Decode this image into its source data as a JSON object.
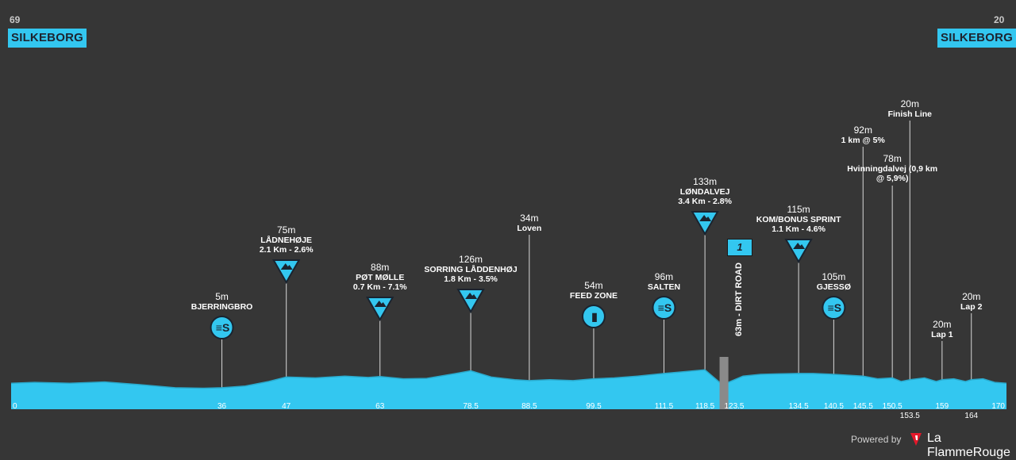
{
  "header": {
    "left_number": "69",
    "left_town": "SILKEBORG",
    "right_number": "20",
    "right_town": "SILKEBORG"
  },
  "profile": {
    "x_km_range": [
      0,
      170
    ],
    "altitude_range_m": [
      0,
      140
    ],
    "fill_color": "#33c7f0",
    "line_color": "#2aa9cc",
    "distance_labels": [
      "0",
      "36",
      "47",
      "63",
      "78.5",
      "88.5",
      "99.5",
      "111.5",
      "118.5",
      "123.5",
      "134.5",
      "140.5",
      "145.5",
      "150.5",
      "153.5",
      "159",
      "164",
      "170"
    ]
  },
  "points": [
    {
      "km": 36,
      "alt": "5m",
      "name": "BJERRINGBRO",
      "type": "sprint"
    },
    {
      "km": 47,
      "alt": "75m",
      "name": "LÅDNEHØJE",
      "detail": "2.1 Km - 2.6%",
      "type": "climb"
    },
    {
      "km": 63,
      "alt": "88m",
      "name": "PØT MØLLE",
      "detail": "0.7 Km - 7.1%",
      "type": "climb"
    },
    {
      "km": 78.5,
      "alt": "126m",
      "name": "SORRING LÅDDENHØJ",
      "detail": "1.8 Km - 3.5%",
      "type": "climb"
    },
    {
      "km": 88.5,
      "alt": "34m",
      "name": "Loven",
      "type": "line"
    },
    {
      "km": 99.5,
      "alt": "54m",
      "name": "FEED ZONE",
      "type": "feed"
    },
    {
      "km": 111.5,
      "alt": "96m",
      "name": "SALTEN",
      "type": "sprint"
    },
    {
      "km": 118.5,
      "alt": "133m",
      "name": "LØNDALVEJ",
      "detail": "3.4 Km - 2.8%",
      "type": "climb"
    },
    {
      "km": 134.5,
      "alt": "115m",
      "name": "KOM/BONUS SPRINT",
      "detail": "1.1 Km - 4.6%",
      "type": "climb"
    },
    {
      "km": 140.5,
      "alt": "105m",
      "name": "GJESSØ",
      "type": "sprint"
    },
    {
      "km": 145.5,
      "alt": "92m",
      "name": "1 km @ 5%",
      "type": "line"
    },
    {
      "km": 150.5,
      "alt": "78m",
      "name": "Hvinningdalvej (0,9 km",
      "name2": "@ 5,9%)",
      "type": "line"
    },
    {
      "km": 153.5,
      "alt": "20m",
      "name": "Finish Line",
      "type": "line"
    },
    {
      "km": 159,
      "alt": "20m",
      "name": "Lap 1",
      "type": "line"
    },
    {
      "km": 164,
      "alt": "20m",
      "name": "Lap 2",
      "type": "line"
    }
  ],
  "sector": {
    "number": "1",
    "label": "63m - DIRT ROAD",
    "from_km": 121,
    "to_km": 122.5
  },
  "footer": {
    "powered_by": "Powered by",
    "brand": "La FlammeRouge"
  }
}
